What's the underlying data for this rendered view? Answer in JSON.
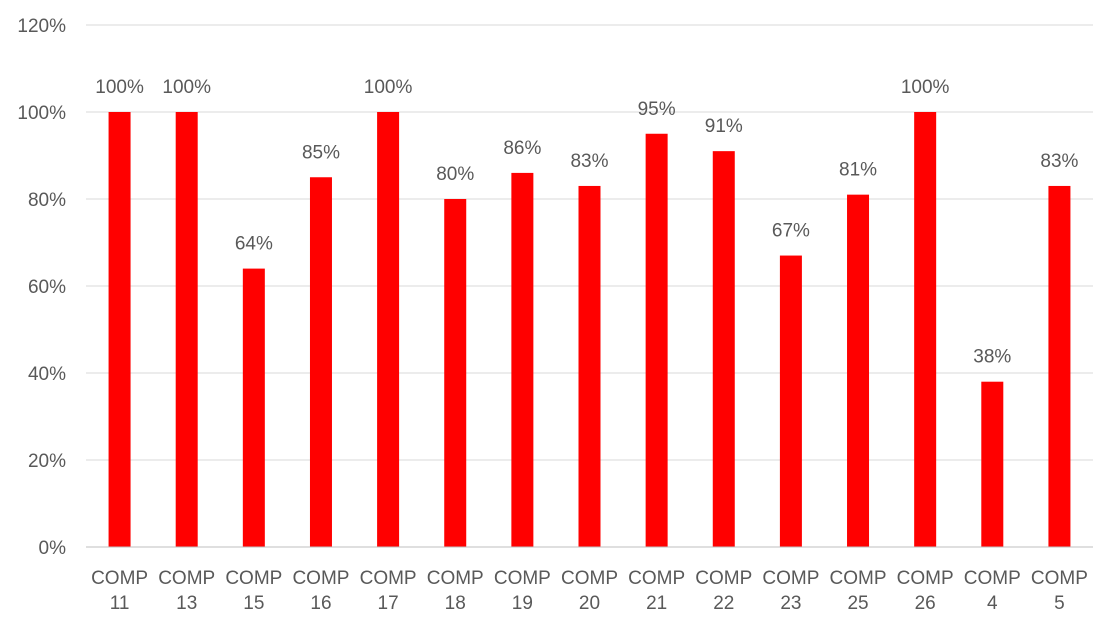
{
  "chart_data": {
    "type": "bar",
    "title": "",
    "xlabel": "",
    "ylabel": "",
    "categories": [
      "COMP 11",
      "COMP 13",
      "COMP 15",
      "COMP 16",
      "COMP 17",
      "COMP 18",
      "COMP 19",
      "COMP 20",
      "COMP 21",
      "COMP 22",
      "COMP 23",
      "COMP 25",
      "COMP 26",
      "COMP 4",
      "COMP 5"
    ],
    "category_lines": [
      [
        "COMP",
        "11"
      ],
      [
        "COMP",
        "13"
      ],
      [
        "COMP",
        "15"
      ],
      [
        "COMP",
        "16"
      ],
      [
        "COMP",
        "17"
      ],
      [
        "COMP",
        "18"
      ],
      [
        "COMP",
        "19"
      ],
      [
        "COMP",
        "20"
      ],
      [
        "COMP",
        "21"
      ],
      [
        "COMP",
        "22"
      ],
      [
        "COMP",
        "23"
      ],
      [
        "COMP",
        "25"
      ],
      [
        "COMP",
        "26"
      ],
      [
        "COMP",
        "4"
      ],
      [
        "COMP",
        "5"
      ]
    ],
    "values": [
      100,
      100,
      64,
      85,
      100,
      80,
      86,
      83,
      95,
      91,
      67,
      81,
      100,
      38,
      83
    ],
    "data_labels": [
      "100%",
      "100%",
      "64%",
      "85%",
      "100%",
      "80%",
      "86%",
      "83%",
      "95%",
      "91%",
      "67%",
      "81%",
      "100%",
      "38%",
      "83%"
    ],
    "ylim": [
      0,
      120
    ],
    "yticks": [
      0,
      20,
      40,
      60,
      80,
      100,
      120
    ],
    "ytick_labels": [
      "0%",
      "20%",
      "40%",
      "60%",
      "80%",
      "100%",
      "120%"
    ],
    "grid": true,
    "legend": "none",
    "bar_color": "#ff0000"
  }
}
